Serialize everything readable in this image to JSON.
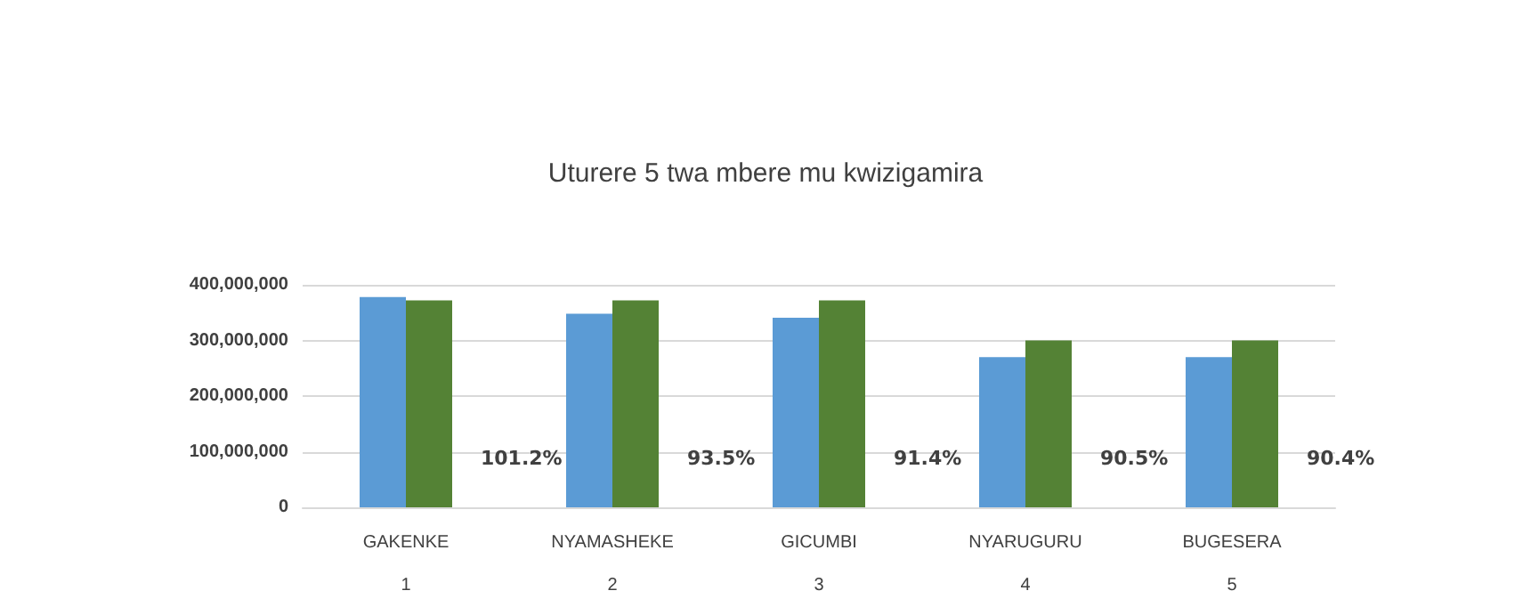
{
  "chart_data": {
    "type": "bar",
    "title": "Uturere 5 twa mbere mu kwizigamira",
    "categories": [
      "GAKENKE\n1",
      "NYAMASHEKE\n2",
      "GICUMBI\n3",
      "NYARUGURU\n4",
      "BUGESERA\n5"
    ],
    "series": [
      {
        "color": "#5b9bd5",
        "values": [
          378000000,
          348000000,
          341000000,
          270000000,
          270000000
        ]
      },
      {
        "color": "#548235",
        "values": [
          372000000,
          372000000,
          372000000,
          300000000,
          300000000
        ]
      }
    ],
    "annotations": [
      "101.2%",
      "93.5%",
      "91.4%",
      "90.5%",
      "90.4%"
    ],
    "ylim": [
      0,
      400000000
    ],
    "yticks": [
      0,
      {
        "value": 100000000,
        "label": "100,000,000"
      },
      {
        "value": 200000000,
        "label": "200,000,000"
      },
      {
        "value": 300000000,
        "label": "300,000,000"
      },
      {
        "value": 400000000,
        "label": "400,000,000"
      }
    ],
    "grid": "y"
  }
}
